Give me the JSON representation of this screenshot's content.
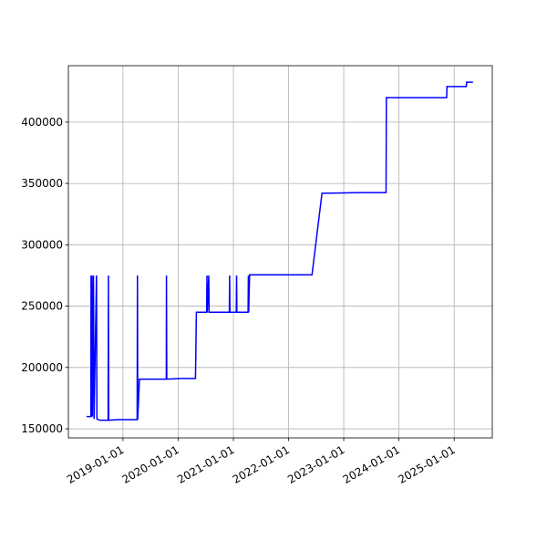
{
  "chart_data": {
    "type": "line",
    "color": "#0000ff",
    "grid": true,
    "x": [
      "2018-05-05",
      "2018-06-03",
      "2018-06-04",
      "2018-06-06",
      "2018-06-10",
      "2018-06-13",
      "2018-06-20",
      "2018-06-24",
      "2018-07-10",
      "2018-07-13",
      "2018-08-01",
      "2018-09-25",
      "2018-09-27",
      "2018-09-29",
      "2018-12-01",
      "2019-04-05",
      "2019-04-07",
      "2019-04-09",
      "2019-04-20",
      "2019-10-15",
      "2019-10-16",
      "2019-10-18",
      "2020-01-20",
      "2020-04-25",
      "2020-05-01",
      "2020-07-08",
      "2020-07-10",
      "2020-07-12",
      "2020-07-22",
      "2020-07-24",
      "2020-12-05",
      "2020-12-07",
      "2020-12-09",
      "2021-01-20",
      "2021-01-22",
      "2021-01-24",
      "2021-04-08",
      "2021-04-10",
      "2021-04-12",
      "2021-04-18",
      "2022-06-05",
      "2022-08-10",
      "2023-05-01",
      "2023-10-08",
      "2023-10-10",
      "2024-11-12",
      "2024-11-14",
      "2025-03-22",
      "2025-03-24",
      "2025-05-05"
    ],
    "values": [
      160000,
      160000,
      275000,
      160000,
      275000,
      160000,
      275000,
      158000,
      275000,
      158000,
      157000,
      157000,
      275000,
      157000,
      157500,
      157500,
      275000,
      157500,
      190500,
      190500,
      275000,
      190500,
      191000,
      191000,
      245000,
      245000,
      275000,
      245000,
      275000,
      245000,
      245000,
      275000,
      245000,
      245000,
      275000,
      245000,
      245000,
      275000,
      245000,
      275500,
      275500,
      342000,
      342500,
      342500,
      420000,
      420000,
      429000,
      429000,
      432500,
      432500
    ],
    "xlim": [
      "2018-01-05",
      "2025-09-10"
    ],
    "xticks": [
      "2019-01-01",
      "2020-01-01",
      "2021-01-01",
      "2022-01-01",
      "2023-01-01",
      "2024-01-01",
      "2025-01-01"
    ],
    "ylim": [
      142600,
      446000
    ],
    "yticks": [
      150000,
      200000,
      250000,
      300000,
      350000,
      400000
    ]
  }
}
